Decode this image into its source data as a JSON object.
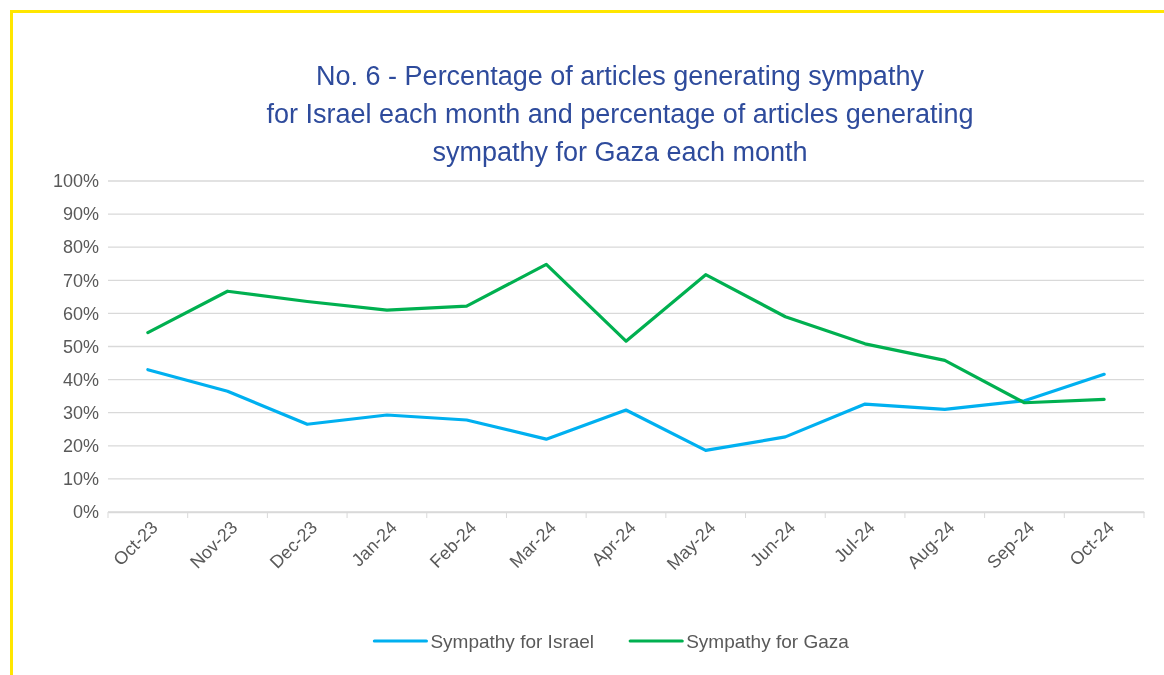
{
  "chart_data": {
    "type": "line",
    "title": "No. 6 - Percentage of articles generating sympathy\nfor Israel each month and percentage of articles generating\nsympathy for Gaza each month",
    "categories": [
      "Oct-23",
      "Nov-23",
      "Dec-23",
      "Jan-24",
      "Feb-24",
      "Mar-24",
      "Apr-24",
      "May-24",
      "Jun-24",
      "Jul-24",
      "Aug-24",
      "Sep-24",
      "Oct-24"
    ],
    "series": [
      {
        "name": "Sympathy for Israel",
        "color": "#00b0f0",
        "values": [
          43,
          36.5,
          26.5,
          29.3,
          27.8,
          22,
          30.8,
          18.6,
          22.7,
          32.6,
          31,
          33.6,
          41.6
        ]
      },
      {
        "name": "Sympathy for Gaza",
        "color": "#00b050",
        "values": [
          54.2,
          66.7,
          63.6,
          61,
          62.2,
          74.8,
          51.6,
          71.7,
          59,
          50.8,
          45.8,
          33,
          34
        ]
      }
    ],
    "ylim": [
      0,
      100
    ],
    "yticks": [
      {
        "value": 0,
        "label": "0%"
      },
      {
        "value": 10,
        "label": "10%"
      },
      {
        "value": 20,
        "label": "20%"
      },
      {
        "value": 30,
        "label": "30%"
      },
      {
        "value": 40,
        "label": "40%"
      },
      {
        "value": 50,
        "label": "50%"
      },
      {
        "value": 60,
        "label": "60%"
      },
      {
        "value": 70,
        "label": "70%"
      },
      {
        "value": 80,
        "label": "80%"
      },
      {
        "value": 90,
        "label": "90%"
      },
      {
        "value": 100,
        "label": "100%"
      }
    ],
    "grid": "y",
    "legend": "bottom",
    "marker": "none",
    "line_style": "solid"
  }
}
